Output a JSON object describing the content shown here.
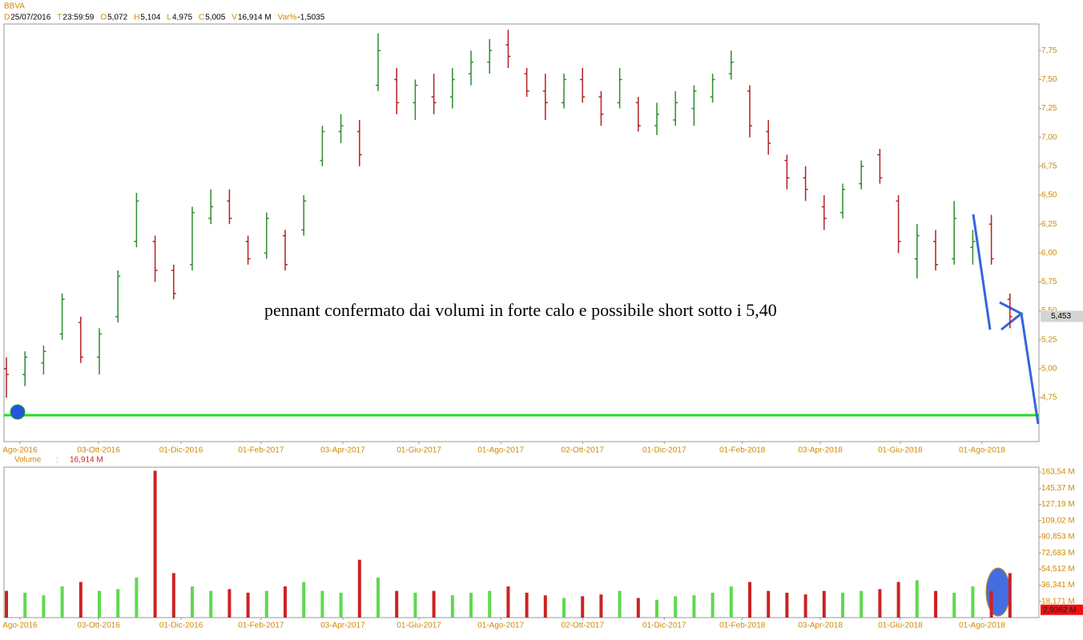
{
  "chart_data": [
    {
      "type": "ohlc",
      "title": "BBVA",
      "info": [
        {
          "key": "D",
          "value": "25/07/2016"
        },
        {
          "key": "T",
          "value": "23:59:59"
        },
        {
          "key": "O",
          "value": "5,072"
        },
        {
          "key": "H",
          "value": "5,104"
        },
        {
          "key": "L",
          "value": "4,975"
        },
        {
          "key": "C",
          "value": "5,005"
        },
        {
          "key": "V",
          "value": "16,914 M"
        },
        {
          "key": "Var%",
          "value": "-1,5035"
        }
      ],
      "annotation": "pennant confermato dai volumi in forte calo e possibile short sotto i 5,40",
      "up_color": "#2e8b2e",
      "down_color": "#b22222",
      "open": [
        5.0,
        4.95,
        5.05,
        5.3,
        5.4,
        5.1,
        5.45,
        6.1,
        6.1,
        5.85,
        5.9,
        6.3,
        6.45,
        6.1,
        6.0,
        6.15,
        6.2,
        6.8,
        7.05,
        7.05,
        7.45,
        7.5,
        7.3,
        7.35,
        7.35,
        7.55,
        7.65,
        7.8,
        7.55,
        7.4,
        7.3,
        7.5,
        7.35,
        7.3,
        7.3,
        7.1,
        7.15,
        7.25,
        7.35,
        7.55,
        7.4,
        7.05,
        6.8,
        6.65,
        6.4,
        6.35,
        6.6,
        6.85,
        6.45,
        5.95,
        6.1,
        5.95,
        6.05,
        6.25,
        5.6
      ],
      "high": [
        5.1,
        5.15,
        5.2,
        5.65,
        5.45,
        5.35,
        5.85,
        6.52,
        6.15,
        5.9,
        6.4,
        6.55,
        6.55,
        6.15,
        6.35,
        6.2,
        6.5,
        7.1,
        7.2,
        7.15,
        7.9,
        7.6,
        7.5,
        7.55,
        7.6,
        7.75,
        7.85,
        7.93,
        7.6,
        7.55,
        7.55,
        7.6,
        7.4,
        7.6,
        7.35,
        7.3,
        7.4,
        7.45,
        7.55,
        7.75,
        7.45,
        7.15,
        6.85,
        6.75,
        6.5,
        6.6,
        6.8,
        6.9,
        6.5,
        6.25,
        6.2,
        6.45,
        6.2,
        6.33,
        5.65
      ],
      "low": [
        4.75,
        4.85,
        4.95,
        5.25,
        5.05,
        4.95,
        5.4,
        6.05,
        5.75,
        5.6,
        5.85,
        6.25,
        6.25,
        5.9,
        5.95,
        5.85,
        6.15,
        6.75,
        6.95,
        6.75,
        7.4,
        7.2,
        7.15,
        7.2,
        7.25,
        7.45,
        7.55,
        7.6,
        7.35,
        7.15,
        7.25,
        7.3,
        7.1,
        7.25,
        7.05,
        7.02,
        7.1,
        7.1,
        7.3,
        7.5,
        7.0,
        6.85,
        6.55,
        6.45,
        6.2,
        6.3,
        6.55,
        6.6,
        6.0,
        5.78,
        5.85,
        5.9,
        5.9,
        5.9,
        5.35
      ],
      "close": [
        4.95,
        5.1,
        5.15,
        5.6,
        5.1,
        5.3,
        5.8,
        6.45,
        5.85,
        5.65,
        6.35,
        6.4,
        6.3,
        5.95,
        6.3,
        5.9,
        6.45,
        7.05,
        7.1,
        6.85,
        7.75,
        7.3,
        7.45,
        7.3,
        7.5,
        7.65,
        7.75,
        7.7,
        7.4,
        7.3,
        7.5,
        7.35,
        7.2,
        7.5,
        7.1,
        7.2,
        7.3,
        7.4,
        7.5,
        7.65,
        7.1,
        6.95,
        6.65,
        6.55,
        6.3,
        6.55,
        6.75,
        6.65,
        6.1,
        6.15,
        5.9,
        6.3,
        6.1,
        5.95,
        5.45
      ],
      "last_price": {
        "value": 5.453,
        "label": "5,453"
      },
      "xlim": [
        -0.13,
        55.56
      ],
      "ylim": [
        4.37,
        7.98
      ],
      "yticks": [
        {
          "value": 4.75,
          "label": "4,75"
        },
        {
          "value": 5.0,
          "label": "5,00"
        },
        {
          "value": 5.25,
          "label": "5,25"
        },
        {
          "value": 5.5,
          "label": "5,50"
        },
        {
          "value": 5.75,
          "label": "5,75"
        },
        {
          "value": 6.0,
          "label": "6,00"
        },
        {
          "value": 6.25,
          "label": "6,25"
        },
        {
          "value": 6.5,
          "label": "6,50"
        },
        {
          "value": 6.75,
          "label": "6,75"
        },
        {
          "value": 7.0,
          "label": "7,00"
        },
        {
          "value": 7.25,
          "label": "7,25"
        },
        {
          "value": 7.5,
          "label": "7,50"
        },
        {
          "value": 7.75,
          "label": "7,75"
        }
      ],
      "xticks": [
        {
          "value": 0.73,
          "label": "Ago-2016"
        },
        {
          "value": 4.96,
          "label": "03-Ott-2016"
        },
        {
          "value": 9.4,
          "label": "01-Dic-2016"
        },
        {
          "value": 13.7,
          "label": "01-Feb-2017"
        },
        {
          "value": 18.1,
          "label": "03-Apr-2017"
        },
        {
          "value": 22.2,
          "label": "01-Giu-2017"
        },
        {
          "value": 26.6,
          "label": "01-Ago-2017"
        },
        {
          "value": 31.0,
          "label": "02-Ott-2017"
        },
        {
          "value": 35.4,
          "label": "01-Dic-2017"
        },
        {
          "value": 39.6,
          "label": "01-Feb-2018"
        },
        {
          "value": 43.8,
          "label": "03-Apr-2018"
        },
        {
          "value": 48.1,
          "label": "01-Giu-2018"
        },
        {
          "value": 52.5,
          "label": "01-Ago-2018"
        }
      ]
    },
    {
      "type": "bar",
      "title": "Volume",
      "info": "16,914 M",
      "up_color": "#5fd94f",
      "down_color": "#cc2222",
      "values": [
        30,
        28,
        25,
        35,
        40,
        30,
        32,
        45,
        165,
        50,
        35,
        30,
        32,
        28,
        30,
        35,
        40,
        30,
        28,
        65,
        45,
        30,
        28,
        30,
        25,
        28,
        30,
        35,
        28,
        25,
        22,
        24,
        26,
        30,
        22,
        20,
        24,
        25,
        28,
        35,
        40,
        30,
        28,
        26,
        30,
        28,
        30,
        32,
        40,
        42,
        30,
        28,
        35,
        30,
        50
      ],
      "last_volume": {
        "value": 2.9362,
        "label": "2,9362 M"
      },
      "xlim": [
        -0.13,
        55.56
      ],
      "ylim": [
        0,
        169
      ],
      "yticks": [
        {
          "value": 18.171,
          "label": "18,171 M"
        },
        {
          "value": 36.341,
          "label": "36,341 M"
        },
        {
          "value": 54.512,
          "label": "54,512 M"
        },
        {
          "value": 72.683,
          "label": "72,683 M"
        },
        {
          "value": 90.853,
          "label": "90,853 M"
        },
        {
          "value": 109.02,
          "label": "109,02 M"
        },
        {
          "value": 127.19,
          "label": "127,19 M"
        },
        {
          "value": 145.37,
          "label": "145,37 M"
        },
        {
          "value": 163.54,
          "label": "163,54 M"
        }
      ],
      "xticks": [
        {
          "value": 0.73,
          "label": "Ago-2016"
        },
        {
          "value": 4.96,
          "label": "03-Ott-2016"
        },
        {
          "value": 9.4,
          "label": "01-Dic-2016"
        },
        {
          "value": 13.7,
          "label": "01-Feb-2017"
        },
        {
          "value": 18.1,
          "label": "03-Apr-2017"
        },
        {
          "value": 22.2,
          "label": "01-Giu-2017"
        },
        {
          "value": 26.6,
          "label": "01-Ago-2017"
        },
        {
          "value": 31.0,
          "label": "02-Ott-2017"
        },
        {
          "value": 35.4,
          "label": "01-Dic-2017"
        },
        {
          "value": 39.6,
          "label": "01-Feb-2018"
        },
        {
          "value": 43.8,
          "label": "03-Apr-2018"
        },
        {
          "value": 48.1,
          "label": "01-Giu-2018"
        },
        {
          "value": 52.5,
          "label": "01-Ago-2018"
        }
      ]
    }
  ]
}
